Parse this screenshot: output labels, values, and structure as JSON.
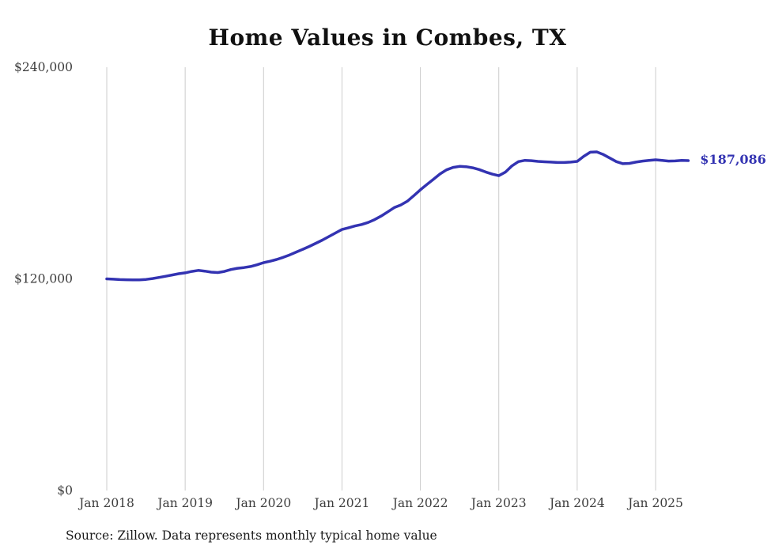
{
  "page": {
    "source_note": "Source: Zillow. Data represents monthly typical home value"
  },
  "chart_data": {
    "type": "line",
    "title": "Home Values in Combes, TX",
    "xlabel": "",
    "ylabel": "",
    "ylim": [
      0,
      240000
    ],
    "y_ticks": [
      0,
      120000,
      240000
    ],
    "y_tick_labels": [
      "$0",
      "$120,000",
      "$240,000"
    ],
    "x_tick_labels": [
      "Jan 2018",
      "Jan 2019",
      "Jan 2020",
      "Jan 2021",
      "Jan 2022",
      "Jan 2023",
      "Jan 2024",
      "Jan 2025"
    ],
    "months_per_x_tick": 12,
    "grid": "vertical-only",
    "legend": "none",
    "end_label": "$187,086",
    "end_value": 187086,
    "colors": {
      "line": "#3333b2",
      "grid": "#cccccc",
      "tick_text": "#3d3d3d"
    },
    "series": [
      {
        "name": "Typical home value",
        "color": "#3333b2",
        "x_start": "2018-01",
        "interval": "monthly",
        "values": [
          120000,
          119800,
          119600,
          119500,
          119400,
          119400,
          119700,
          120200,
          120800,
          121500,
          122200,
          122900,
          123400,
          124200,
          124800,
          124400,
          123800,
          123600,
          124200,
          125300,
          126000,
          126400,
          127000,
          128000,
          129200,
          130000,
          131000,
          132200,
          133600,
          135200,
          136800,
          138400,
          140200,
          142000,
          144000,
          146000,
          148000,
          149000,
          150000,
          150800,
          152000,
          153600,
          155600,
          158000,
          160400,
          161900,
          164000,
          167200,
          170500,
          173500,
          176500,
          179500,
          181800,
          183200,
          183800,
          183600,
          183000,
          182000,
          180600,
          179400,
          178500,
          180500,
          184000,
          186500,
          187200,
          187000,
          186600,
          186400,
          186200,
          186000,
          186000,
          186200,
          186600,
          189500,
          191800,
          192000,
          190500,
          188500,
          186500,
          185300,
          185500,
          186200,
          186800,
          187200,
          187500,
          187200,
          186800,
          186900,
          187200,
          187086
        ]
      }
    ]
  }
}
